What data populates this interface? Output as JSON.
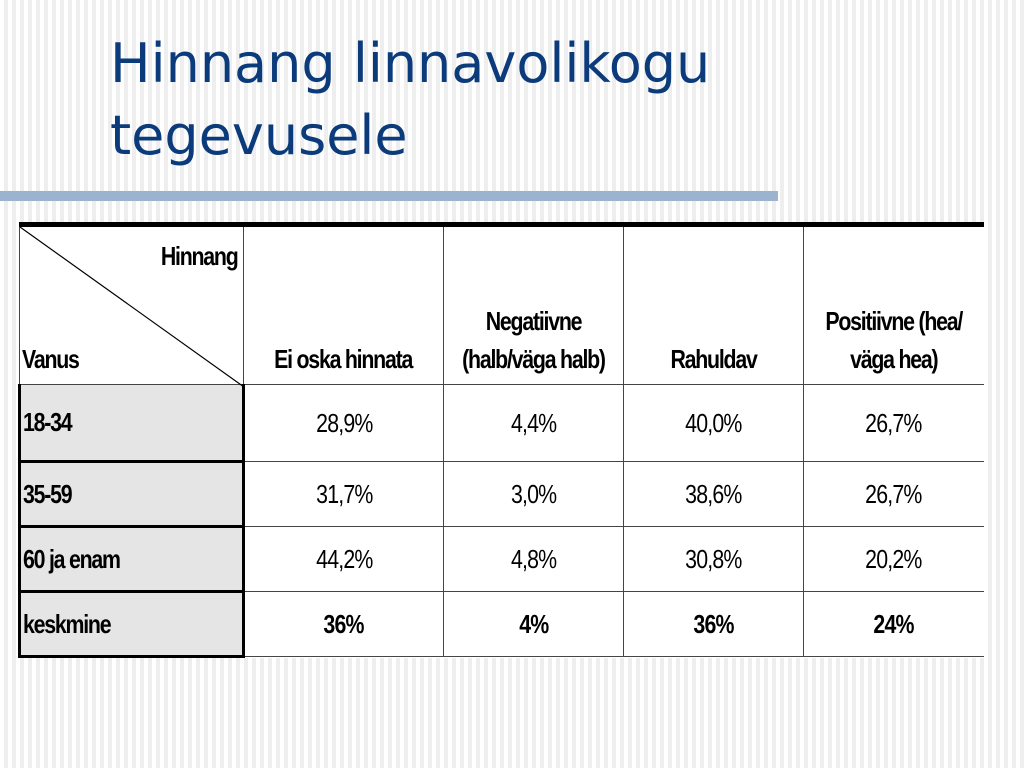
{
  "slide": {
    "title": "Hinnang linnavolikogu tegevusele"
  },
  "table": {
    "corner_top": "Hinnang",
    "corner_bottom": "Vanus",
    "headers": [
      "Ei oska hinnata",
      "Negatiivne (halb/väga halb)",
      "Rahuldav",
      "Positiivne (hea/ väga hea)"
    ],
    "rows": [
      {
        "label": "18-34",
        "values": [
          "28,9%",
          "4,4%",
          "40,0%",
          "26,7%"
        ]
      },
      {
        "label": "35-59",
        "values": [
          "31,7%",
          "3,0%",
          "38,6%",
          "26,7%"
        ]
      },
      {
        "label": "60 ja enam",
        "values": [
          "44,2%",
          "4,8%",
          "30,8%",
          "20,2%"
        ]
      },
      {
        "label": "keskmine",
        "values": [
          "36%",
          "4%",
          "36%",
          "24%"
        ]
      }
    ]
  },
  "colors": {
    "title": "#0b3b7a",
    "title_rule": "#9bb3cf",
    "row_label_bg": "#e5e5e5"
  }
}
